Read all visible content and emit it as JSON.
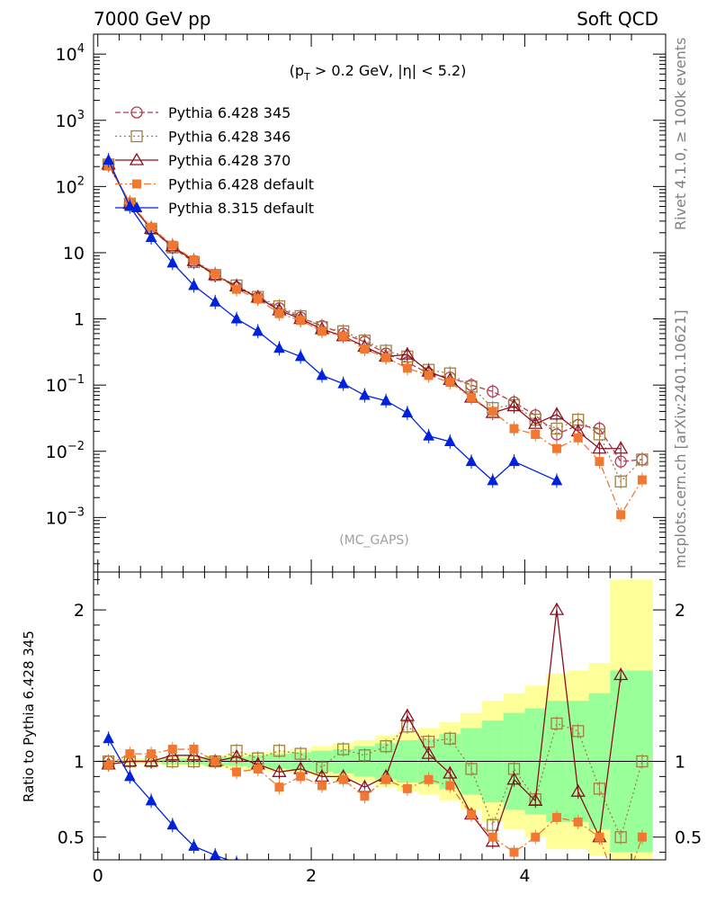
{
  "header": {
    "left_title": "7000 GeV pp",
    "right_title": "Soft QCD"
  },
  "side_labels": {
    "rivet": "Rivet 4.1.0, ≥ 100k events",
    "mcplots": "mcplots.cern.ch [arXiv:2401.10621]"
  },
  "chart_data": [
    {
      "id": "main",
      "type": "line",
      "yscale": "log",
      "ylim": [
        0.00015,
        20000
      ],
      "xlim": [
        -0.04,
        5.32
      ],
      "cut_label": "(p_T > 0.2 GeV, |η| < 5.2)",
      "analysis_label": "(MC_GAPS)",
      "yticks": [
        {
          "v": 10000,
          "m": "10",
          "e": "4"
        },
        {
          "v": 1000,
          "m": "10",
          "e": "3"
        },
        {
          "v": 100,
          "m": "10",
          "e": "2"
        },
        {
          "v": 10,
          "m": "10",
          "e": ""
        },
        {
          "v": 1,
          "m": "1",
          "e": ""
        },
        {
          "v": 0.1,
          "m": "10",
          "e": "−1"
        },
        {
          "v": 0.01,
          "m": "10",
          "e": "−2"
        },
        {
          "v": 0.001,
          "m": "10",
          "e": "−3"
        }
      ],
      "x": [
        0.1,
        0.3,
        0.5,
        0.7,
        0.9,
        1.1,
        1.3,
        1.5,
        1.7,
        1.9,
        2.1,
        2.3,
        2.5,
        2.7,
        2.9,
        3.1,
        3.3,
        3.5,
        3.7,
        3.9,
        4.1,
        4.3,
        4.5,
        4.7,
        4.9,
        5.1
      ],
      "series": [
        {
          "name": "Pythia 6.428 345",
          "color": "#b03a50",
          "marker": "circle-open",
          "dash": "6,3",
          "values": [
            215,
            55,
            23,
            12,
            7.2,
            4.6,
            3.0,
            2.1,
            1.45,
            1.05,
            0.78,
            0.6,
            0.45,
            0.3,
            0.22,
            0.15,
            0.13,
            0.1,
            0.08,
            0.055,
            0.035,
            0.018,
            0.025,
            0.022,
            0.007,
            0.0075
          ]
        },
        {
          "name": "Pythia 6.428 346",
          "color": "#a08040",
          "marker": "square-open",
          "dash": "2,3",
          "values": [
            215,
            55,
            23,
            12,
            7.2,
            4.6,
            3.2,
            2.15,
            1.55,
            1.1,
            0.75,
            0.65,
            0.47,
            0.33,
            0.27,
            0.17,
            0.15,
            0.095,
            0.045,
            0.05,
            0.03,
            0.022,
            0.03,
            0.018,
            0.0035,
            0.0075
          ]
        },
        {
          "name": "Pythia 6.428 370",
          "color": "#8b1020",
          "marker": "triangle-open",
          "dash": "",
          "values": [
            215,
            55,
            23,
            12.5,
            7.5,
            4.6,
            3.1,
            2.1,
            1.35,
            1.0,
            0.7,
            0.55,
            0.38,
            0.27,
            0.29,
            0.16,
            0.12,
            0.065,
            0.038,
            0.048,
            0.026,
            0.036,
            0.02,
            0.011,
            0.011,
            0.0
          ]
        },
        {
          "name": "Pythia 6.428 default",
          "color": "#f07830",
          "marker": "square-filled",
          "dash": "8,3,2,3",
          "values": [
            210,
            58,
            24,
            13,
            7.8,
            4.8,
            2.8,
            2.0,
            1.2,
            0.95,
            0.65,
            0.55,
            0.35,
            0.26,
            0.18,
            0.14,
            0.11,
            0.065,
            0.04,
            0.022,
            0.018,
            0.011,
            0.016,
            0.007,
            0.0011,
            0.0037
          ]
        },
        {
          "name": "Pythia 8.315 default",
          "color": "#0022dd",
          "marker": "triangle-filled",
          "dash": "",
          "values": [
            250,
            50,
            17,
            7.0,
            3.2,
            1.8,
            1.0,
            0.65,
            0.36,
            0.27,
            0.14,
            0.105,
            0.07,
            0.058,
            0.038,
            0.017,
            0.014,
            0.007,
            0.0036,
            0.007,
            0.0,
            0.0036,
            null,
            null,
            null,
            null
          ]
        }
      ]
    },
    {
      "id": "ratio",
      "type": "line",
      "ylabel": "Ratio to Pythia 6.428 345",
      "ylim": [
        0.35,
        2.25
      ],
      "xlim": [
        -0.04,
        5.32
      ],
      "yticks": [
        "0.5",
        "1",
        "2"
      ],
      "xticks": [
        "0",
        "2",
        "4"
      ],
      "band_yellow": [
        [
          0.99,
          1.01
        ],
        [
          0.98,
          1.02
        ],
        [
          0.98,
          1.02
        ],
        [
          0.97,
          1.03
        ],
        [
          0.97,
          1.03
        ],
        [
          0.96,
          1.04
        ],
        [
          0.95,
          1.05
        ],
        [
          0.94,
          1.06
        ],
        [
          0.93,
          1.07
        ],
        [
          0.92,
          1.08
        ],
        [
          0.9,
          1.1
        ],
        [
          0.88,
          1.12
        ],
        [
          0.86,
          1.14
        ],
        [
          0.83,
          1.17
        ],
        [
          0.8,
          1.2
        ],
        [
          0.78,
          1.22
        ],
        [
          0.74,
          1.26
        ],
        [
          0.68,
          1.32
        ],
        [
          0.6,
          1.4
        ],
        [
          0.55,
          1.45
        ],
        [
          0.5,
          1.5
        ],
        [
          0.42,
          1.58
        ],
        [
          0.42,
          1.6
        ],
        [
          0.38,
          1.65
        ],
        [
          0.3,
          2.2
        ],
        [
          0.3,
          2.2
        ]
      ],
      "band_green": [
        [
          0.995,
          1.005
        ],
        [
          0.99,
          1.01
        ],
        [
          0.99,
          1.01
        ],
        [
          0.98,
          1.02
        ],
        [
          0.98,
          1.02
        ],
        [
          0.97,
          1.03
        ],
        [
          0.97,
          1.03
        ],
        [
          0.96,
          1.04
        ],
        [
          0.95,
          1.05
        ],
        [
          0.94,
          1.06
        ],
        [
          0.93,
          1.07
        ],
        [
          0.92,
          1.08
        ],
        [
          0.9,
          1.1
        ],
        [
          0.88,
          1.12
        ],
        [
          0.86,
          1.14
        ],
        [
          0.85,
          1.15
        ],
        [
          0.82,
          1.18
        ],
        [
          0.78,
          1.22
        ],
        [
          0.73,
          1.27
        ],
        [
          0.68,
          1.32
        ],
        [
          0.65,
          1.35
        ],
        [
          0.6,
          1.4
        ],
        [
          0.6,
          1.4
        ],
        [
          0.55,
          1.45
        ],
        [
          0.4,
          1.6
        ],
        [
          0.4,
          1.6
        ]
      ],
      "series": [
        {
          "name": "Pythia 6.428 346",
          "color": "#a08040",
          "marker": "square-open",
          "dash": "2,3",
          "values": [
            1.0,
            1.0,
            1.0,
            1.0,
            1.0,
            1.0,
            1.07,
            1.02,
            1.07,
            1.05,
            0.96,
            1.08,
            1.04,
            1.1,
            1.23,
            1.13,
            1.15,
            0.95,
            0.58,
            0.95,
            0.75,
            1.25,
            1.2,
            0.82,
            0.5,
            1.0
          ]
        },
        {
          "name": "Pythia 6.428 370",
          "color": "#8b1020",
          "marker": "triangle-open",
          "dash": "",
          "values": [
            0.98,
            1.0,
            1.0,
            1.04,
            1.04,
            1.0,
            1.03,
            0.98,
            0.93,
            0.95,
            0.9,
            0.9,
            0.83,
            0.9,
            1.3,
            1.05,
            0.92,
            0.65,
            0.47,
            0.88,
            0.74,
            2.0,
            0.8,
            0.5,
            1.57,
            null
          ]
        },
        {
          "name": "Pythia 6.428 default",
          "color": "#f07830",
          "marker": "square-filled",
          "dash": "8,3,2,3",
          "values": [
            0.98,
            1.05,
            1.05,
            1.08,
            1.08,
            1.0,
            0.93,
            0.95,
            0.83,
            0.9,
            0.84,
            0.88,
            0.77,
            0.88,
            0.82,
            0.88,
            0.84,
            0.65,
            0.5,
            0.4,
            0.5,
            0.63,
            0.6,
            0.5,
            0.1,
            0.5
          ]
        },
        {
          "name": "Pythia 8.315 default",
          "color": "#0022dd",
          "marker": "triangle-filled",
          "dash": "",
          "values": [
            1.15,
            0.9,
            0.74,
            0.58,
            0.44,
            0.38,
            0.33,
            null,
            null,
            null,
            null,
            null,
            null,
            null,
            null,
            null,
            null,
            null,
            null,
            null,
            null,
            null,
            null,
            null,
            null,
            null
          ]
        }
      ]
    }
  ]
}
